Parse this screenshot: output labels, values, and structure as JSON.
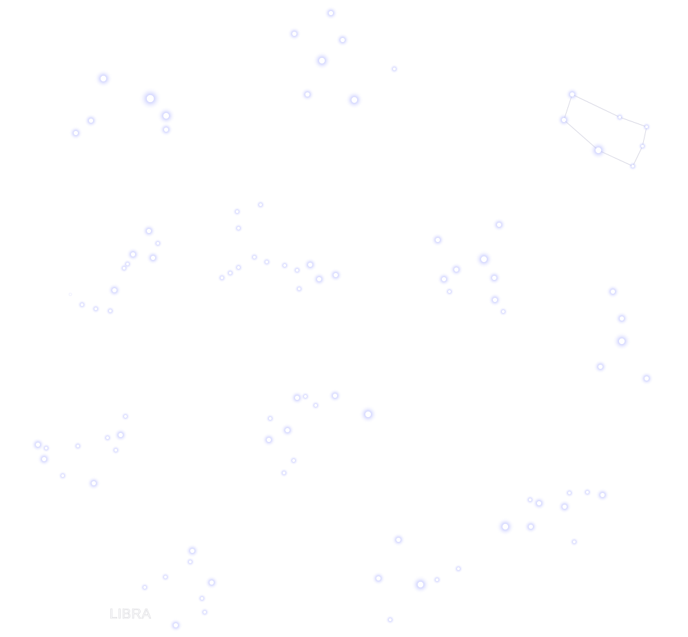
{
  "scene": {
    "background": "#ffffff",
    "star_color": "#ffffff",
    "glow_color": "#9aa2ff",
    "line_color": "#d8d8e4",
    "label_color": "#d3d3d8"
  },
  "constellation_label": "LIBRA",
  "star_count": 138
}
